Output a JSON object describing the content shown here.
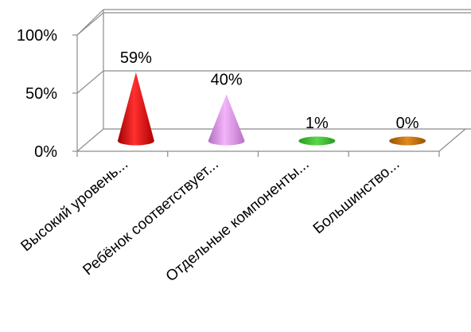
{
  "chart_data": {
    "type": "bar",
    "subtype": "3d-cone",
    "categories": [
      "Высокий уровень...",
      "Ребёнок соответствует...",
      "Отдельные компоненты...",
      "Большинство..."
    ],
    "series": [
      {
        "values": [
          59,
          40,
          1,
          0
        ],
        "data_labels": [
          "59%",
          "40%",
          "1%",
          "0%"
        ],
        "colors": [
          "#f01818",
          "#e08ee8",
          "#3cbf30",
          "#c86e08"
        ]
      }
    ],
    "yticks": [
      "0%",
      "50%",
      "100%"
    ],
    "ylim": [
      0,
      100
    ],
    "grid": true,
    "legend": "none",
    "title": "",
    "xlabel": "",
    "ylabel": ""
  }
}
